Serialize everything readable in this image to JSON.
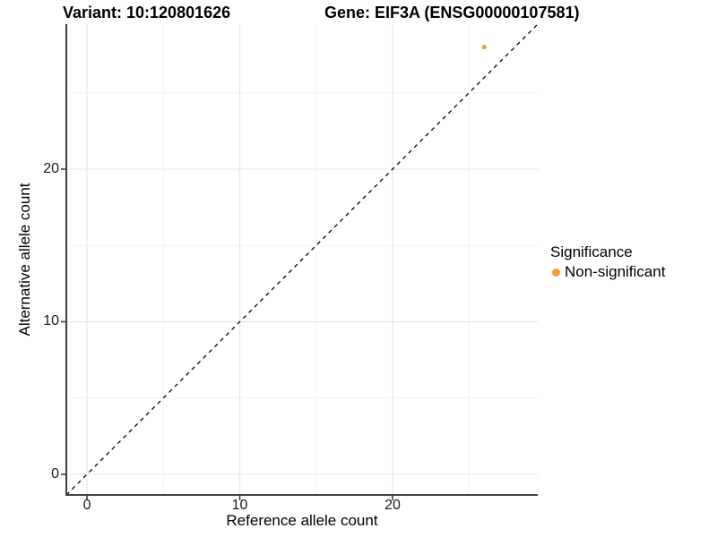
{
  "figure": {
    "titles": {
      "variant": "Variant: 10:120801626",
      "gene": "Gene: EIF3A (ENSG00000107581)"
    }
  },
  "chart_data": {
    "type": "scatter",
    "xlabel": "Reference allele count",
    "ylabel": "Alternative allele count",
    "xlim": [
      -1.35,
      29.5
    ],
    "ylim": [
      -1.35,
      29.5
    ],
    "x_major_ticks": [
      0,
      10,
      20
    ],
    "x_minor_ticks": [
      5,
      15,
      25
    ],
    "y_major_ticks": [
      0,
      10,
      20
    ],
    "y_minor_ticks": [
      5,
      15,
      25
    ],
    "grid": {
      "major": true,
      "minor": true,
      "major_color": "#e9e9e9",
      "minor_color": "#f4f4f4"
    },
    "axis_color": "#404040",
    "reference_line": {
      "kind": "identity",
      "slope": 1,
      "intercept": 0,
      "style": "dashed",
      "color": "#000000"
    },
    "series": [
      {
        "name": "Non-significant",
        "color": "#f89b28",
        "points": [
          {
            "x": 26,
            "y": 28
          }
        ]
      }
    ],
    "legend": {
      "title": "Significance",
      "position": "right",
      "entries": [
        {
          "label": "Non-significant",
          "color": "#f89b28",
          "marker": "circle"
        }
      ]
    }
  }
}
